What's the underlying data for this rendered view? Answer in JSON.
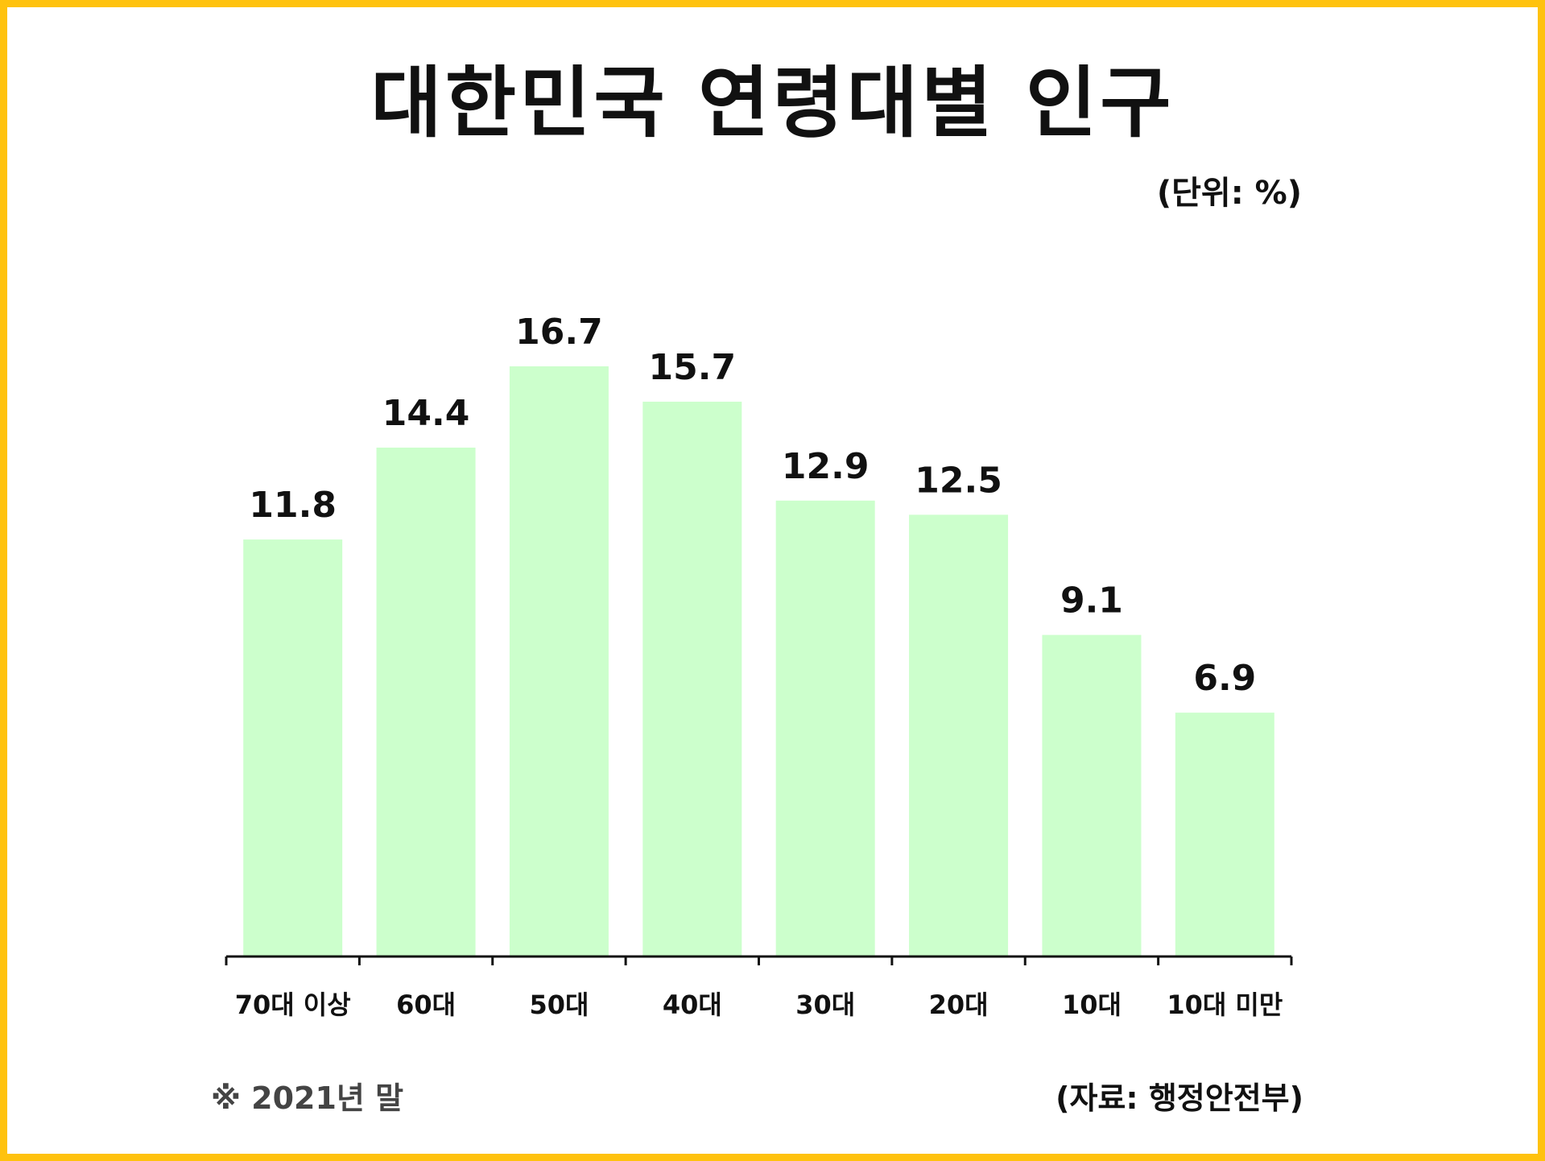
{
  "colors": {
    "border": "#FFC20E",
    "bar": "#CCFFCC",
    "text": "#111111",
    "note": "#444444"
  },
  "header": {
    "title": "대한민국 연령대별 인구",
    "unit": "(단위: %)"
  },
  "footer": {
    "note": "※ 2021년 말",
    "source": "(자료: 행정안전부)"
  },
  "chart_data": {
    "type": "bar",
    "categories": [
      "70대 이상",
      "60대",
      "50대",
      "40대",
      "30대",
      "20대",
      "10대",
      "10대 미만"
    ],
    "values": [
      11.8,
      14.4,
      16.7,
      15.7,
      12.9,
      12.5,
      9.1,
      6.9
    ],
    "data_labels": [
      "11.8",
      "14.4",
      "16.7",
      "15.7",
      "12.9",
      "12.5",
      "9.1",
      "6.9"
    ],
    "title": "대한민국 연령대별 인구",
    "xlabel": "",
    "ylabel": "",
    "unit": "%",
    "ylim": [
      0,
      16.7
    ],
    "grid": false,
    "legend": "none"
  }
}
